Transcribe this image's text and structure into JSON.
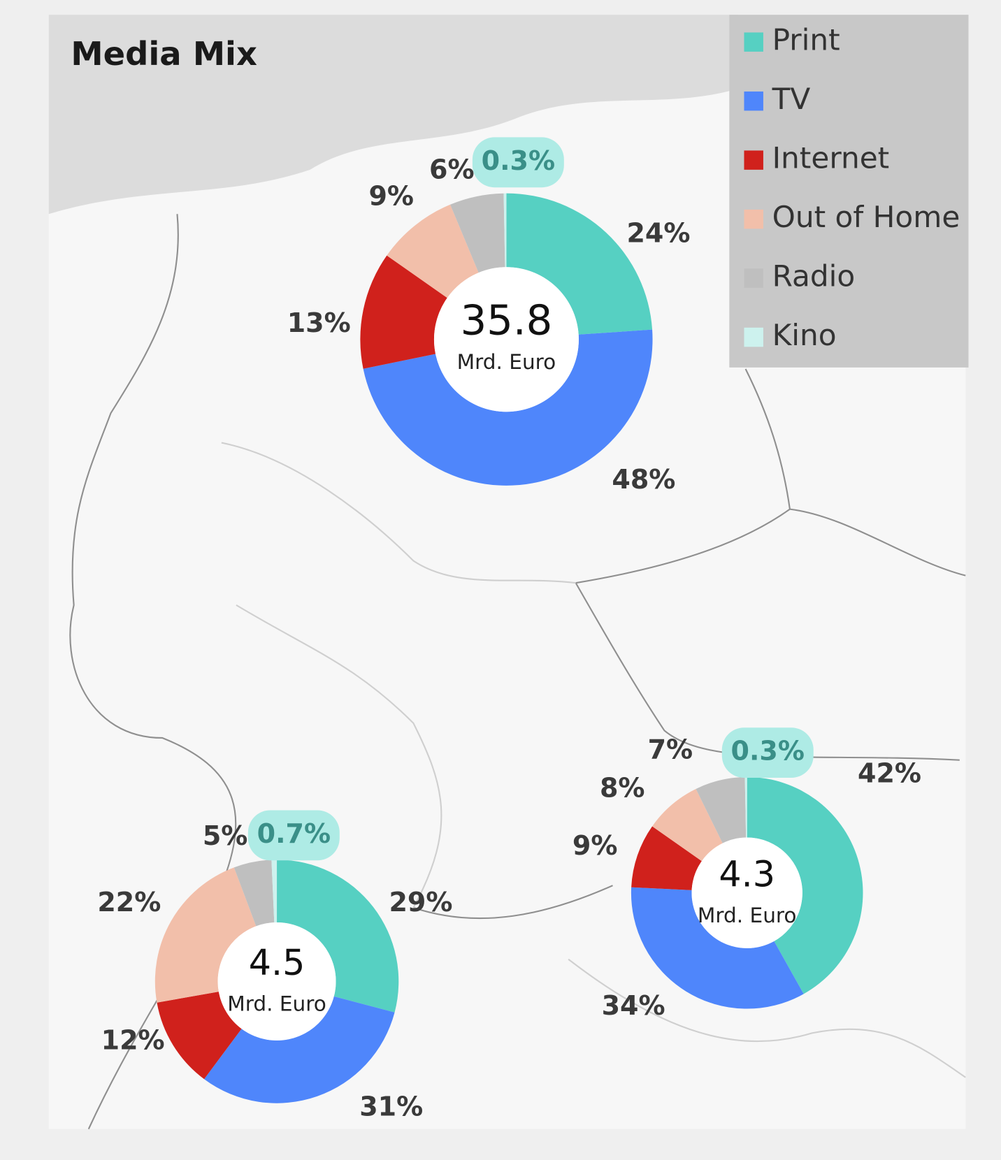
{
  "title": "Media Mix",
  "chart_data": [
    {
      "type": "donut",
      "categories": [
        "Print",
        "TV",
        "Internet",
        "Out of Home",
        "Radio",
        "Kino"
      ],
      "colors": [
        "#56d0c2",
        "#4f86fb",
        "#d0211c",
        "#f2bfaa",
        "#bfbfbf",
        "#cdf2ee"
      ],
      "values": [
        24,
        48,
        13,
        9,
        6,
        0.3
      ],
      "value_labels": [
        "24%",
        "48%",
        "13%",
        "9%",
        "6%",
        "0.3%"
      ],
      "total": 35.8,
      "total_unit": "Mrd. Euro"
    },
    {
      "type": "donut",
      "categories": [
        "Print",
        "TV",
        "Internet",
        "Out of Home",
        "Radio",
        "Kino"
      ],
      "colors": [
        "#56d0c2",
        "#4f86fb",
        "#d0211c",
        "#f2bfaa",
        "#bfbfbf",
        "#cdf2ee"
      ],
      "values": [
        29,
        31,
        12,
        22,
        5,
        0.7
      ],
      "value_labels": [
        "29%",
        "31%",
        "12%",
        "22%",
        "5%",
        "0.7%"
      ],
      "total": 4.5,
      "total_unit": "Mrd. Euro"
    },
    {
      "type": "donut",
      "categories": [
        "Print",
        "TV",
        "Internet",
        "Out of Home",
        "Radio",
        "Kino"
      ],
      "colors": [
        "#56d0c2",
        "#4f86fb",
        "#d0211c",
        "#f2bfaa",
        "#bfbfbf",
        "#cdf2ee"
      ],
      "values": [
        42,
        34,
        9,
        8,
        7,
        0.3
      ],
      "value_labels": [
        "42%",
        "34%",
        "9%",
        "8%",
        "7%",
        "0.3%"
      ],
      "total": 4.3,
      "total_unit": "Mrd. Euro"
    }
  ]
}
